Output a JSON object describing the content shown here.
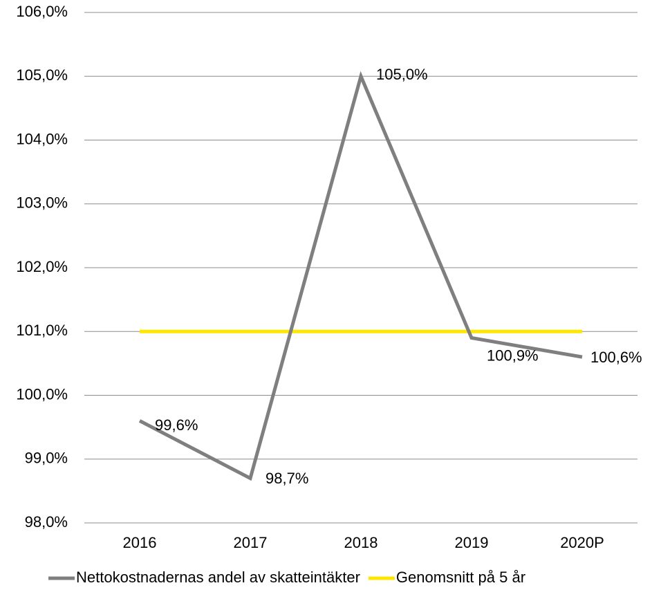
{
  "chart_data": {
    "type": "line",
    "categories": [
      "2016",
      "2017",
      "2018",
      "2019",
      "2020P"
    ],
    "series": [
      {
        "name": "Nettokostnadernas andel av skatteintäkter",
        "color": "#7f7f7f",
        "values": [
          99.6,
          98.7,
          105.0,
          100.9,
          100.6
        ],
        "value_labels": [
          "99,6%",
          "98,7%",
          "105,0%",
          "100,9%",
          "100,6%"
        ]
      },
      {
        "name": "Genomsnitt på 5 år",
        "color": "#ffe600",
        "values": [
          101.0,
          101.0,
          101.0,
          101.0,
          101.0
        ]
      }
    ],
    "ylim": [
      98,
      106
    ],
    "yticks": [
      {
        "value": 98,
        "label": "98,0%"
      },
      {
        "value": 99,
        "label": "99,0%"
      },
      {
        "value": 100,
        "label": "100,0%"
      },
      {
        "value": 101,
        "label": "101,0%"
      },
      {
        "value": 102,
        "label": "102,0%"
      },
      {
        "value": 103,
        "label": "103,0%"
      },
      {
        "value": 104,
        "label": "104,0%"
      },
      {
        "value": 105,
        "label": "105,0%"
      },
      {
        "value": 106,
        "label": "106,0%"
      }
    ],
    "grid": true
  }
}
